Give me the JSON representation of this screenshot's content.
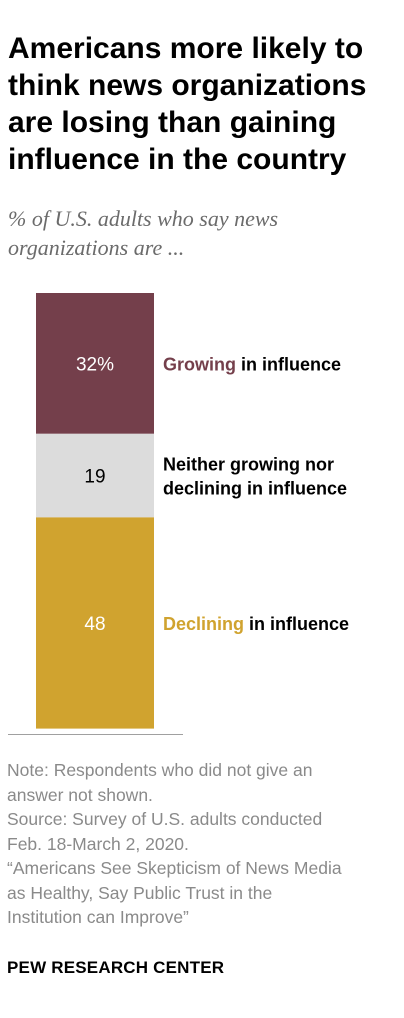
{
  "title": "Americans more likely to think news organizations are losing than gaining influence in the country",
  "subtitle": "% of U.S. adults who say news organizations are ...",
  "chart_data": {
    "type": "bar",
    "stacked": true,
    "categories": [
      "Growing in influence",
      "Neither growing nor declining in influence",
      "Declining in influence"
    ],
    "values": [
      32,
      19,
      48
    ],
    "value_labels": [
      "32%",
      "19",
      "48"
    ],
    "series": [
      {
        "label_colored": "Growing",
        "label_rest": " in influence",
        "color": "#743f4b",
        "value_text_color": "#ffffff",
        "label_color": "#743f4b"
      },
      {
        "label_lines": [
          "Neither growing nor",
          "declining in influence"
        ],
        "color": "#dcdcdc",
        "value_text_color": "#000000",
        "label_color": "#000000"
      },
      {
        "label_colored": "Declining",
        "label_rest": " in influence",
        "color": "#d0a32f",
        "value_text_color": "#ffffff",
        "label_color": "#d0a32f"
      }
    ],
    "ylim": [
      0,
      100
    ],
    "legend": "right of bar",
    "grid": false
  },
  "notes": {
    "lines": [
      "Note: Respondents who did not give an",
      "answer not shown.",
      "Source: Survey of U.S. adults conducted",
      "Feb. 18-March 2, 2020.",
      "“Americans See Skepticism of News Media",
      "as Healthy, Say Public Trust in the",
      "Institution can Improve”"
    ]
  },
  "source_org": "PEW RESEARCH CENTER"
}
